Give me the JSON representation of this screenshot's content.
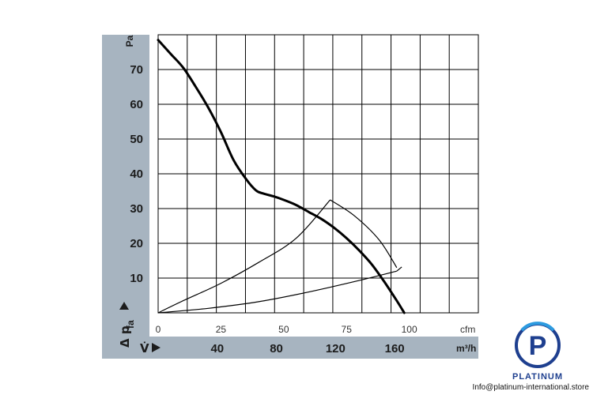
{
  "chart_data": {
    "type": "line",
    "x_primary": {
      "unit": "cfm",
      "ticks": [
        0,
        25,
        50,
        75,
        100
      ],
      "range": [
        0,
        127.5
      ]
    },
    "x_secondary": {
      "unit": "m³/h",
      "symbol": "V̇",
      "ticks": [
        40,
        80,
        120,
        160
      ]
    },
    "y": {
      "unit": "Pa",
      "symbol": "Δ p",
      "subscript": "fa",
      "ticks": [
        10,
        20,
        30,
        40,
        50,
        60,
        70
      ],
      "range": [
        0,
        80
      ]
    },
    "grid": true,
    "series": [
      {
        "values": [
          [
            0,
            78.5
          ],
          [
            5,
            74.5
          ],
          [
            10,
            70.5
          ],
          [
            15,
            65
          ],
          [
            20,
            59
          ],
          [
            25,
            52
          ],
          [
            30,
            44
          ],
          [
            35,
            38.5
          ],
          [
            39,
            35.2
          ],
          [
            42,
            34.3
          ],
          [
            46,
            33.5
          ],
          [
            50,
            32.5
          ],
          [
            55,
            31
          ],
          [
            60,
            29
          ],
          [
            65,
            27
          ],
          [
            70,
            24.5
          ],
          [
            75,
            21.5
          ],
          [
            80,
            18
          ],
          [
            85,
            14
          ],
          [
            90,
            9
          ],
          [
            95,
            3.5
          ],
          [
            98,
            0
          ]
        ]
      }
    ],
    "operating_range": {
      "outer_arc": [
        [
          68.5,
          32.5
        ],
        [
          78,
          28
        ],
        [
          88,
          21
        ],
        [
          95,
          13
        ]
      ],
      "lower_curve": [
        [
          0,
          0
        ],
        [
          20,
          1.3
        ],
        [
          40,
          3.2
        ],
        [
          60,
          6
        ],
        [
          80,
          9.3
        ],
        [
          95,
          12
        ]
      ],
      "upper_curve": [
        [
          0,
          0
        ],
        [
          10,
          3.5
        ],
        [
          25,
          8.5
        ],
        [
          40,
          14.5
        ],
        [
          55,
          21.5
        ],
        [
          68.5,
          32.5
        ]
      ],
      "closing_segment": [
        [
          95,
          12
        ],
        [
          97,
          13.2
        ]
      ]
    }
  },
  "branding": {
    "logo_letter": "P",
    "name": "PLATINUM",
    "email": "Info@platinum-international.store",
    "primary_color": "#1e3f8f",
    "accent_color": "#2d9be0"
  },
  "colors": {
    "axis_band": "#a7b4c0",
    "grid": "#000000",
    "curve": "#000000"
  }
}
